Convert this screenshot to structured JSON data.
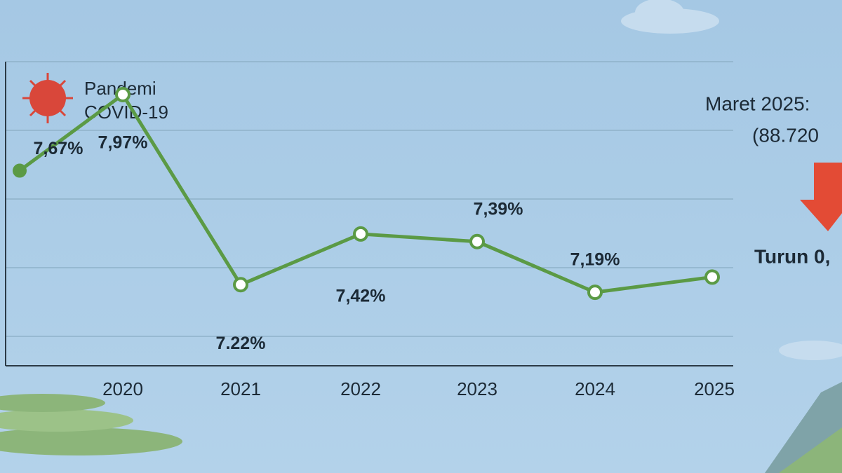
{
  "chart_data": {
    "type": "line",
    "categories": [
      null,
      "2020",
      "2021",
      "2022",
      "2023",
      "2024",
      "2025"
    ],
    "values": [
      7.67,
      7.97,
      7.22,
      7.42,
      7.39,
      7.19,
      7.25
    ],
    "value_labels": [
      "7,67%",
      "7,97%",
      "7.22%",
      "7,42%",
      "7,39%",
      "7,19%",
      null
    ],
    "color": "#5b9a45",
    "ylim": [
      6.9,
      8.1
    ],
    "annotations": [
      "Pandemi",
      "COVID-19",
      "Maret 2025:",
      "(88.720",
      "Turun 0,"
    ]
  }
}
